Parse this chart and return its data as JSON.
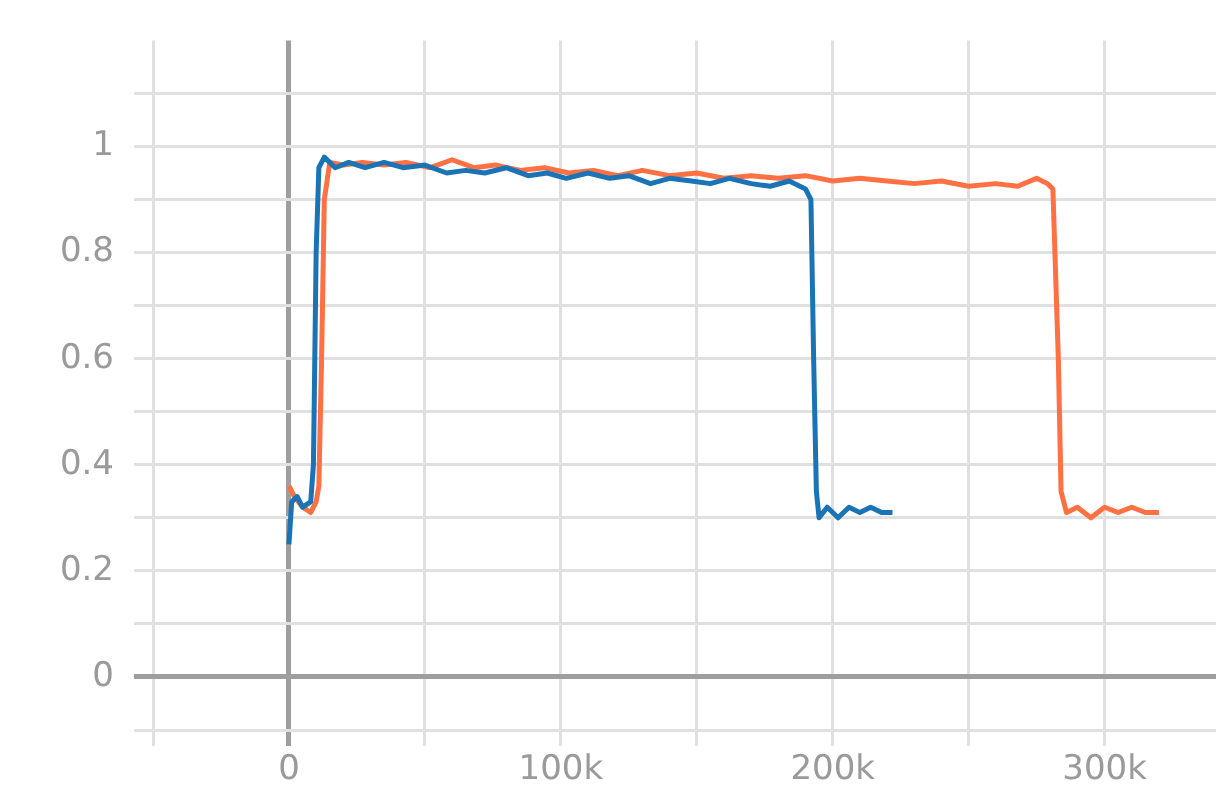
{
  "chart_data": {
    "type": "line",
    "grid": true,
    "marker": "none",
    "line_style": "solid",
    "xlim": [
      -57000,
      341000
    ],
    "xticks": [
      {
        "value": -50000,
        "label": null
      },
      {
        "value": 0,
        "label": "0"
      },
      {
        "value": 50000,
        "label": null
      },
      {
        "value": 100000,
        "label": "100k"
      },
      {
        "value": 150000,
        "label": null
      },
      {
        "value": 200000,
        "label": "200k"
      },
      {
        "value": 250000,
        "label": null
      },
      {
        "value": 300000,
        "label": "300k"
      }
    ],
    "ylim": [
      -0.1,
      1.2
    ],
    "yticks": [
      {
        "value": -0.1,
        "label": null
      },
      0,
      {
        "value": 0.1,
        "label": null
      },
      0.2,
      {
        "value": 0.3,
        "label": null
      },
      0.4,
      {
        "value": 0.5,
        "label": null
      },
      0.6,
      {
        "value": 0.7,
        "label": null
      },
      0.8,
      {
        "value": 0.9,
        "label": null
      },
      1,
      {
        "value": 1.1,
        "label": null
      }
    ],
    "series": [
      {
        "color": "#1a73b5",
        "x": [
          0,
          1000,
          3000,
          5000,
          8000,
          9000,
          10000,
          11000,
          13000,
          17000,
          22000,
          28000,
          35000,
          42000,
          50000,
          58000,
          65000,
          72000,
          80000,
          88000,
          95000,
          102000,
          110000,
          118000,
          125000,
          133000,
          140000,
          148000,
          155000,
          162000,
          170000,
          177000,
          184000,
          190000,
          192000,
          193000,
          194000,
          195000,
          198000,
          202000,
          206000,
          210000,
          214000,
          218000,
          222000
        ],
        "values": [
          0.25,
          0.33,
          0.34,
          0.32,
          0.33,
          0.4,
          0.8,
          0.96,
          0.98,
          0.96,
          0.97,
          0.96,
          0.97,
          0.96,
          0.965,
          0.95,
          0.955,
          0.95,
          0.96,
          0.945,
          0.95,
          0.94,
          0.95,
          0.94,
          0.945,
          0.93,
          0.94,
          0.935,
          0.93,
          0.94,
          0.93,
          0.925,
          0.935,
          0.92,
          0.9,
          0.6,
          0.35,
          0.3,
          0.32,
          0.3,
          0.32,
          0.31,
          0.32,
          0.31,
          0.31
        ]
      },
      {
        "color": "#ff7043",
        "x": [
          0,
          2000,
          5000,
          8000,
          10000,
          11000,
          12000,
          13000,
          15000,
          20000,
          27000,
          35000,
          43000,
          52000,
          60000,
          68000,
          76000,
          85000,
          94000,
          103000,
          112000,
          121000,
          130000,
          140000,
          150000,
          160000,
          170000,
          180000,
          190000,
          200000,
          210000,
          220000,
          230000,
          240000,
          250000,
          260000,
          268000,
          275000,
          279000,
          281000,
          283000,
          284000,
          286000,
          290000,
          295000,
          300000,
          305000,
          310000,
          315000,
          320000
        ],
        "values": [
          0.36,
          0.34,
          0.32,
          0.31,
          0.33,
          0.36,
          0.6,
          0.9,
          0.97,
          0.965,
          0.97,
          0.965,
          0.97,
          0.96,
          0.975,
          0.96,
          0.965,
          0.955,
          0.96,
          0.95,
          0.955,
          0.945,
          0.955,
          0.945,
          0.95,
          0.94,
          0.945,
          0.94,
          0.945,
          0.935,
          0.94,
          0.935,
          0.93,
          0.935,
          0.925,
          0.93,
          0.925,
          0.94,
          0.93,
          0.92,
          0.6,
          0.35,
          0.31,
          0.32,
          0.3,
          0.32,
          0.31,
          0.32,
          0.31,
          0.31
        ]
      }
    ]
  }
}
